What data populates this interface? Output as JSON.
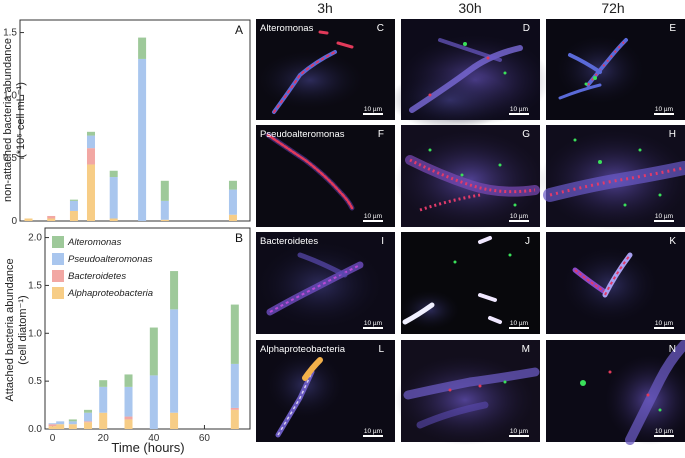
{
  "colors": {
    "alteromonas": "#9ec99a",
    "pseudoalteromonas": "#a9c6ee",
    "bacteroidetes": "#f2a7a3",
    "alphaproteobacteria": "#f7cd86"
  },
  "chart_data": [
    {
      "type": "bar",
      "stacked": true,
      "panel": "A",
      "ylabel": "non-attached bacteria abundance (*10⁵ cell mL⁻¹)",
      "xlabel": "",
      "ylim": [
        0,
        1.6
      ],
      "yticks": [
        "0",
        "0.5",
        "1.0",
        "1.5"
      ],
      "x": [
        0,
        8,
        16,
        22,
        30,
        40,
        48,
        72
      ],
      "series": [
        {
          "name": "Alphaproteobacteria",
          "color_key": "alphaproteobacteria",
          "values": [
            0.02,
            0.02,
            0.08,
            0.45,
            0.02,
            0.0,
            0.01,
            0.05
          ]
        },
        {
          "name": "Bacteroidetes",
          "color_key": "bacteroidetes",
          "values": [
            0.0,
            0.02,
            0.0,
            0.13,
            0.0,
            0.0,
            0.0,
            0.0
          ]
        },
        {
          "name": "Pseudoalteromonas",
          "color_key": "pseudoalteromonas",
          "values": [
            0.0,
            0.0,
            0.08,
            0.1,
            0.33,
            1.29,
            0.15,
            0.2
          ]
        },
        {
          "name": "Alteromonas",
          "color_key": "alteromonas",
          "values": [
            0.0,
            0.0,
            0.01,
            0.03,
            0.05,
            0.17,
            0.16,
            0.07
          ]
        }
      ]
    },
    {
      "type": "bar",
      "stacked": true,
      "panel": "B",
      "ylabel": "Attached bacteria abundance (cell diatom⁻¹)",
      "xlabel": "Time (hours)",
      "ylim": [
        0,
        2.1
      ],
      "yticks": [
        "0.0",
        "0.5",
        "1.0",
        "1.5",
        "2.0"
      ],
      "xticks": [
        "0",
        "20",
        "40",
        "60"
      ],
      "xlim": [
        -3,
        78
      ],
      "x": [
        0,
        3,
        8,
        14,
        20,
        30,
        40,
        48,
        72
      ],
      "series": [
        {
          "name": "Alphaproteobacteria",
          "color_key": "alphaproteobacteria",
          "values": [
            0.03,
            0.05,
            0.05,
            0.07,
            0.17,
            0.1,
            0.0,
            0.17,
            0.2
          ]
        },
        {
          "name": "Bacteroidetes",
          "color_key": "bacteroidetes",
          "values": [
            0.02,
            0.0,
            0.0,
            0.01,
            0.0,
            0.03,
            0.0,
            0.0,
            0.02
          ]
        },
        {
          "name": "Pseudoalteromonas",
          "color_key": "pseudoalteromonas",
          "values": [
            0.01,
            0.03,
            0.03,
            0.09,
            0.27,
            0.31,
            0.56,
            1.08,
            0.46
          ]
        },
        {
          "name": "Alteromonas",
          "color_key": "alteromonas",
          "values": [
            0.0,
            0.0,
            0.02,
            0.03,
            0.07,
            0.13,
            0.5,
            0.4,
            0.62
          ]
        }
      ]
    }
  ],
  "legend": {
    "items": [
      {
        "label": "Alteromonas",
        "color_key": "alteromonas"
      },
      {
        "label": "Pseudoalteromonas",
        "color_key": "pseudoalteromonas"
      },
      {
        "label": "Bacteroidetes",
        "color_key": "bacteroidetes"
      },
      {
        "label": "Alphaproteobacteria",
        "color_key": "alphaproteobacteria"
      }
    ]
  },
  "micrographs": {
    "time_headers": [
      "3h",
      "30h",
      "72h"
    ],
    "scale_label": "10 µm",
    "rows": [
      {
        "taxon": "Alteromonas",
        "letters": [
          "C",
          "D",
          "E"
        ]
      },
      {
        "taxon": "Pseudoalteromonas",
        "letters": [
          "F",
          "G",
          "H"
        ]
      },
      {
        "taxon": "Bacteroidetes",
        "letters": [
          "I",
          "J",
          "K"
        ]
      },
      {
        "taxon": "Alphaproteobacteria",
        "letters": [
          "L",
          "M",
          "N"
        ]
      }
    ]
  }
}
